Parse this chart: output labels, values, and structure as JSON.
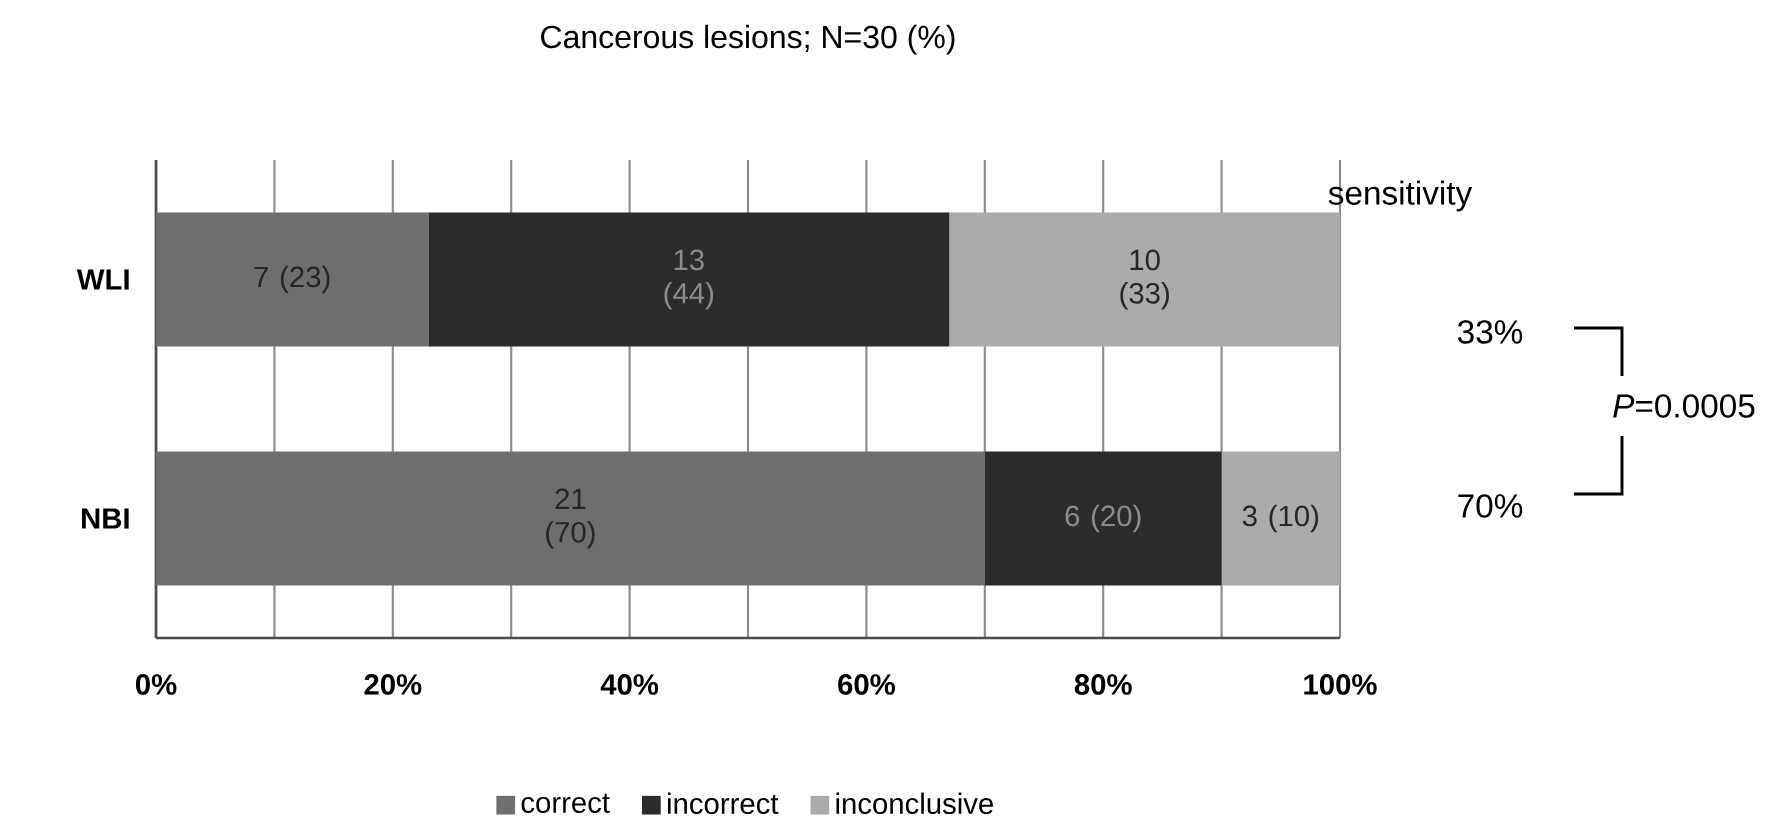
{
  "chart_data": {
    "type": "bar",
    "orientation": "horizontal",
    "stacked": true,
    "title": "Cancerous lesions; N=30 (%)",
    "categories": [
      "WLI",
      "NBI"
    ],
    "series": [
      {
        "name": "correct",
        "color": "#6e6e6e",
        "values": [
          23,
          70
        ],
        "value_labels": [
          "7 (23)",
          "21 (70)"
        ]
      },
      {
        "name": "incorrect",
        "color": "#2b2b2b",
        "values": [
          44,
          20
        ],
        "value_labels": [
          "13 (44)",
          "6 (20)"
        ]
      },
      {
        "name": "inconclusive",
        "color": "#ababab",
        "values": [
          33,
          10
        ],
        "value_labels": [
          "10 (33)",
          "3 (10)"
        ]
      }
    ],
    "xlim": [
      0,
      100
    ],
    "xticks": [
      {
        "value": 0,
        "label": "0%"
      },
      {
        "value": 10,
        "label": null
      },
      {
        "value": 20,
        "label": "20%"
      },
      {
        "value": 30,
        "label": null
      },
      {
        "value": 40,
        "label": "40%"
      },
      {
        "value": 50,
        "label": null
      },
      {
        "value": 60,
        "label": "60%"
      },
      {
        "value": 70,
        "label": null
      },
      {
        "value": 80,
        "label": "80%"
      },
      {
        "value": 90,
        "label": null
      },
      {
        "value": 100,
        "label": "100%"
      }
    ],
    "grid": "x",
    "legend": "bottom",
    "annotations": [
      "sensitivity",
      "33%",
      "70%",
      "*P*=0.0005"
    ]
  }
}
